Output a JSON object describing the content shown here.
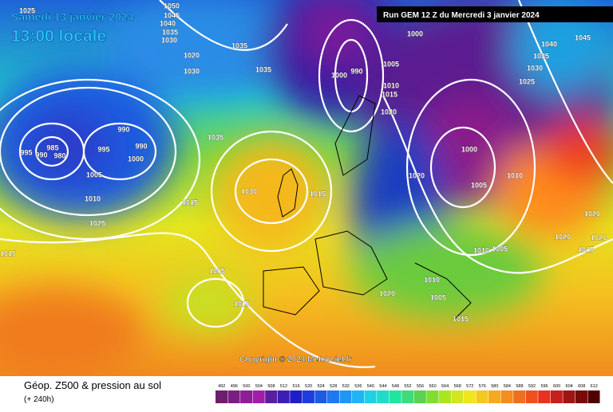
{
  "header": {
    "date": "Samedi 13 janvier 2024",
    "time": "13:00 locale",
    "run": "Run GEM 12 Z du Mercredi 3 janvier 2024"
  },
  "footer": {
    "copyright": "Copyright © 2024 Meteociel.fr",
    "product": "Géop. Z500 & pression au sol",
    "lead_time": "(+ 240h)"
  },
  "isobar_labels": [
    "1025",
    "1050",
    "1045",
    "1040",
    "1035",
    "1030",
    "1020",
    "1035",
    "1035",
    "1030",
    "1000",
    "990",
    "1005",
    "1010",
    "1015",
    "1020",
    "1000",
    "1040",
    "1035",
    "1030",
    "1025",
    "1045",
    "995",
    "990",
    "985",
    "980",
    "995",
    "990",
    "990",
    "1000",
    "1005",
    "1010",
    "1025",
    "1035",
    "1030",
    "1015",
    "1000",
    "1005",
    "1010",
    "1020",
    "1020",
    "1020",
    "1020",
    "1015",
    "1015",
    "1015",
    "1010",
    "1005",
    "1015",
    "1015",
    "1010",
    "1005",
    "1020",
    "1015"
  ],
  "color_scale": {
    "ticks": [
      492,
      496,
      500,
      504,
      508,
      512,
      516,
      520,
      524,
      528,
      532,
      536,
      540,
      544,
      548,
      552,
      556,
      560,
      564,
      568,
      572,
      576,
      580,
      584,
      588,
      592,
      596,
      600,
      604,
      608,
      612
    ],
    "colors": [
      "#6e1e6e",
      "#7a1e82",
      "#8c1e96",
      "#a01eaa",
      "#5a1ea0",
      "#3c1eb4",
      "#1e1ec8",
      "#1e3cdc",
      "#1e5ae6",
      "#1e78f0",
      "#1e96f5",
      "#1eb4f5",
      "#1ed2e6",
      "#1edcc8",
      "#1ee6a0",
      "#3cdc78",
      "#5ad250",
      "#82dc32",
      "#aae61e",
      "#d2e61e",
      "#f0e61e",
      "#f5c81e",
      "#f5aa1e",
      "#f58c1e",
      "#f06e1e",
      "#f0501e",
      "#e6321e",
      "#c81e1e",
      "#a01414",
      "#780a0a",
      "#500000"
    ]
  }
}
